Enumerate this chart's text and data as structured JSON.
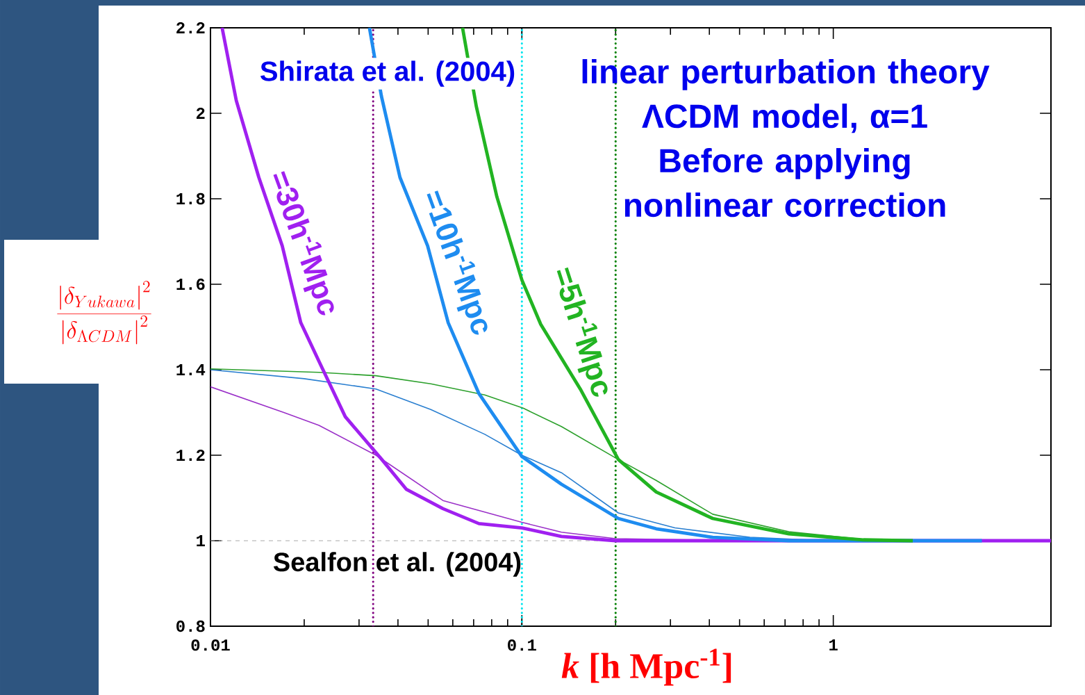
{
  "chart_data": {
    "type": "line",
    "xlabel": "*k* [h Mpc$^{-1}$]",
    "ylabel": "\\frac{\\left|\\delta_{Yukawa}\\right|^{2}}{\\left|\\delta_{\\Lambda CDM}\\right|^{2}}",
    "annotations": [
      "Shirata et al. (2004)",
      "Sealfon et al. (2004)",
      "linear perturbation theory",
      "ΛCDM model,  α=1",
      "Before applying nonlinear correction"
    ],
    "log": "x",
    "xlim": [
      0.01,
      5
    ],
    "ylim": [
      0.8,
      2.2
    ],
    "xticks": [
      0.01,
      0.1,
      1
    ],
    "yticks": [
      0.8,
      1,
      1.2,
      1.4,
      1.6,
      1.8,
      2,
      2.2
    ],
    "marker": "none",
    "line_style": "solid",
    "grid": false,
    "legend": false,
    "series": [
      {
        "color": "#9a30c8",
        "x": [
          0.01,
          0.0172,
          0.0223,
          0.034,
          0.0558,
          0.1,
          0.134,
          0.2,
          0.5,
          1,
          2,
          5
        ],
        "values": [
          1.36,
          1.3,
          1.27,
          1.2,
          1.094,
          1.043,
          1.02,
          1.005,
          1.0,
          1.0,
          1.0,
          1.0
        ]
      },
      {
        "color": "#2a7fd0",
        "x": [
          0.01,
          0.02,
          0.034,
          0.051,
          0.076,
          0.1,
          0.134,
          0.204,
          0.31,
          0.54,
          0.95,
          3
        ],
        "values": [
          1.4,
          1.379,
          1.355,
          1.307,
          1.249,
          1.2,
          1.159,
          1.065,
          1.03,
          1.008,
          1.0,
          1.0
        ]
      },
      {
        "color": "#2ca02c",
        "x": [
          0.01,
          0.0223,
          0.034,
          0.051,
          0.076,
          0.101,
          0.134,
          0.204,
          0.27,
          0.41,
          0.72,
          1.25,
          1.8
        ],
        "values": [
          1.402,
          1.394,
          1.386,
          1.367,
          1.341,
          1.31,
          1.267,
          1.19,
          1.141,
          1.062,
          1.021,
          1.003,
          1.0
        ]
      },
      {
        "name": "=30h$^{-1}$Mpc",
        "color": "#a020f0",
        "x": [
          0.0109,
          0.0121,
          0.0143,
          0.017,
          0.0195,
          0.0223,
          0.0271,
          0.0355,
          0.0426,
          0.0558,
          0.0728,
          0.1,
          0.134,
          0.2,
          0.5,
          1,
          2,
          5
        ],
        "values": [
          2.2,
          2.03,
          1.85,
          1.69,
          1.51,
          1.42,
          1.29,
          1.19,
          1.12,
          1.075,
          1.04,
          1.03,
          1.01,
          1.0,
          1.0,
          1.0,
          1.0,
          1.0
        ]
      },
      {
        "name": "=10h$^{-1}$Mpc",
        "color": "#1e8cf0",
        "x": [
          0.0324,
          0.0354,
          0.0406,
          0.0498,
          0.058,
          0.0727,
          0.1,
          0.134,
          0.204,
          0.27,
          0.41,
          0.72,
          1,
          3
        ],
        "values": [
          2.2,
          2.04,
          1.85,
          1.69,
          1.51,
          1.345,
          1.197,
          1.132,
          1.052,
          1.028,
          1.008,
          1.0,
          1.0,
          1.0
        ]
      },
      {
        "name": "=5h$^{-1}$Mpc",
        "color": "#22b422",
        "x": [
          0.0645,
          0.0714,
          0.0831,
          0.1,
          0.115,
          0.154,
          0.204,
          0.27,
          0.41,
          0.72,
          1.25,
          1.8
        ],
        "values": [
          2.2,
          2.016,
          1.805,
          1.61,
          1.506,
          1.355,
          1.19,
          1.114,
          1.052,
          1.016,
          1.002,
          1.0
        ]
      }
    ],
    "ref_lines": [
      {
        "axis": "x",
        "value": 0.0333,
        "color": "#800080",
        "line_style": "dotted"
      },
      {
        "axis": "x",
        "value": 0.1,
        "color": "#00e5ee",
        "line_style": "dotted"
      },
      {
        "axis": "x",
        "value": 0.2,
        "color": "#008000",
        "line_style": "dotted"
      },
      {
        "axis": "y",
        "value": 1,
        "color": "#aaaaaa",
        "line_style": "dashed"
      }
    ]
  }
}
